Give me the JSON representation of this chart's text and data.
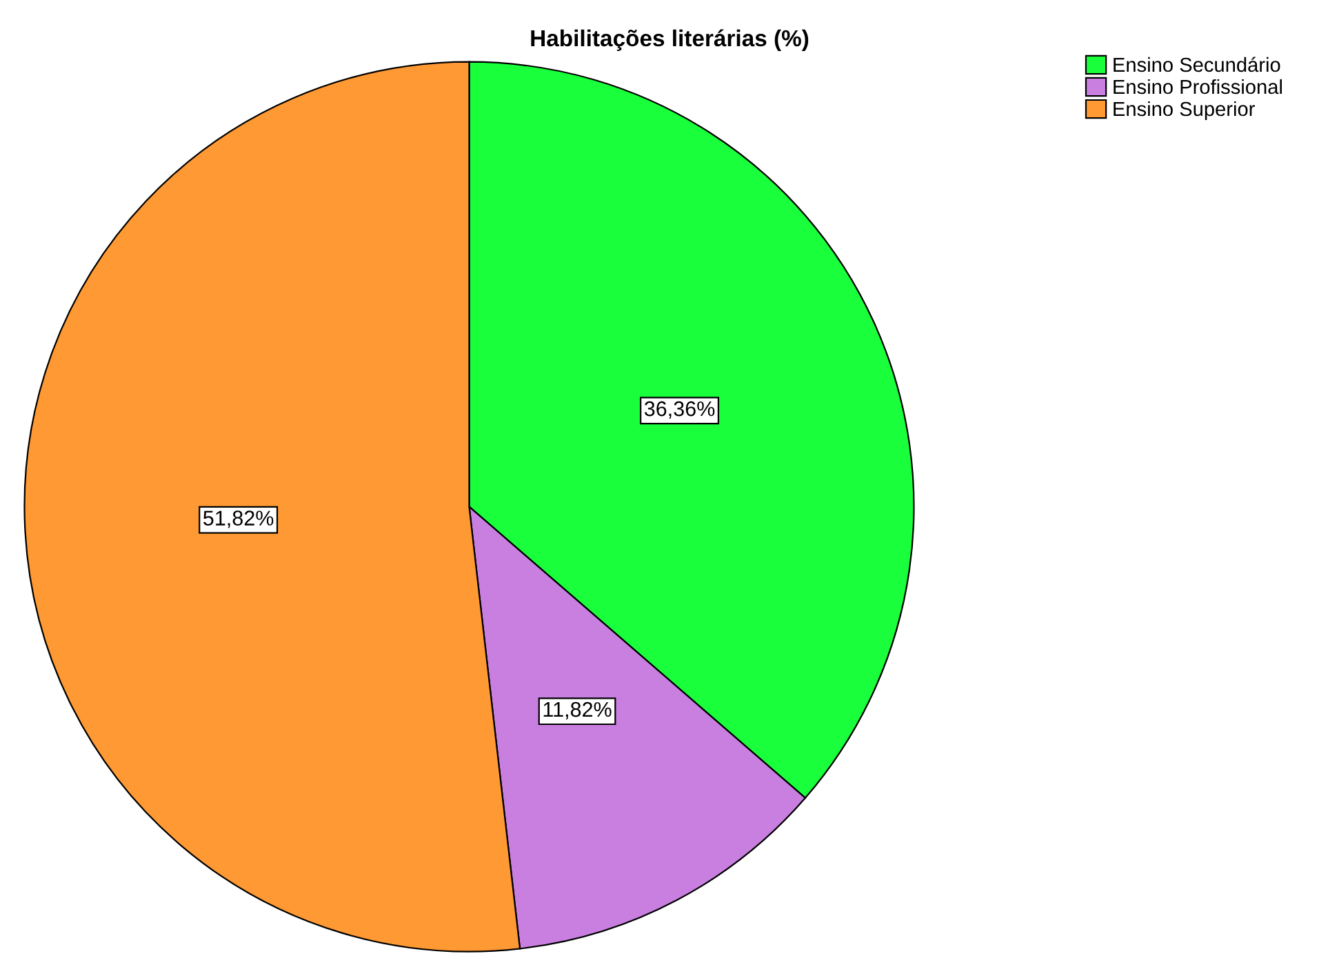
{
  "chart_data": {
    "type": "pie",
    "title": "Habilitações literárias (%)",
    "categories": [
      "Ensino Secundário",
      "Ensino Profissional",
      "Ensino Superior"
    ],
    "values": [
      36.36,
      11.82,
      51.82
    ],
    "colors": [
      "#1aff3c",
      "#c97fe0",
      "#ff9933"
    ],
    "value_labels": [
      "36,36%",
      "11,82%",
      "51,82%"
    ],
    "legend": "top right"
  }
}
